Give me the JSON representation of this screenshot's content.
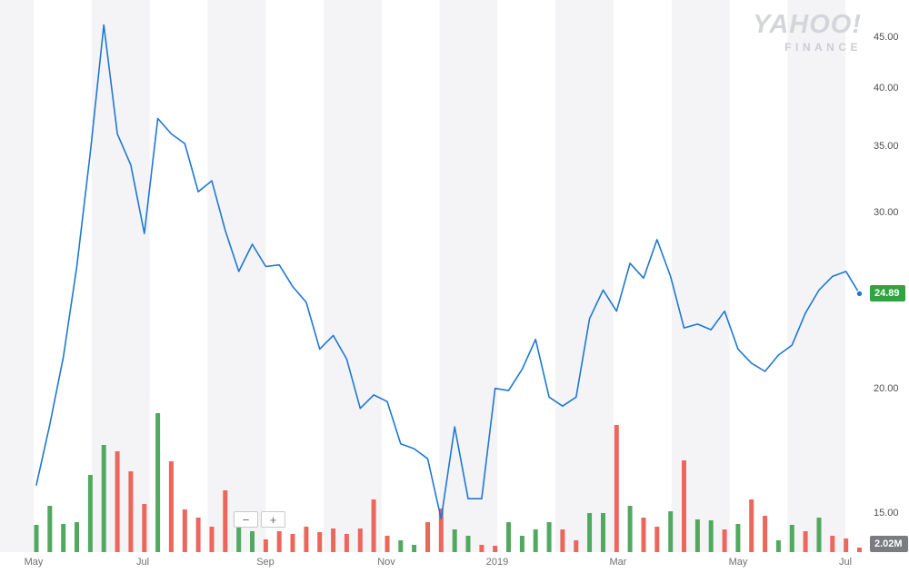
{
  "branding": {
    "logo_main": "YAHOO!",
    "logo_sub": "FINANCE"
  },
  "toolbar": {
    "zoom_out_label": "−",
    "zoom_in_label": "+"
  },
  "price_badge": {
    "text": "24.89"
  },
  "volume_badge": {
    "text": "2.02M"
  },
  "chart_data": {
    "type": "line",
    "y_scale": "log",
    "ylim": [
      14,
      47
    ],
    "grid": "alternating vertical month bands",
    "legend": "none",
    "x_ticks": [
      "May",
      "Jul",
      "Sep",
      "Nov",
      "2019",
      "Mar",
      "May",
      "Jul"
    ],
    "y_ticks": [
      "45.00",
      "40.00",
      "35.00",
      "30.00",
      "20.00",
      "15.00"
    ],
    "last_price": 24.89,
    "last_volume_label": "2.02M",
    "prices": [
      16,
      18.4,
      21.5,
      26.5,
      34.5,
      46.3,
      36,
      33.5,
      28.6,
      37.3,
      36,
      35.2,
      31.5,
      32.3,
      28.8,
      26.2,
      27.9,
      26.5,
      26.6,
      25.3,
      24.4,
      21.9,
      22.6,
      21.4,
      19.1,
      19.7,
      19.4,
      17.6,
      17.4,
      17,
      14.8,
      18.3,
      15.5,
      15.5,
      20,
      19.9,
      20.9,
      22.4,
      19.6,
      19.2,
      19.6,
      23.5,
      25.1,
      23.9,
      26.7,
      25.8,
      28.2,
      25.9,
      23,
      23.2,
      22.9,
      23.9,
      21.9,
      21.2,
      20.8,
      21.6,
      22.1,
      23.8,
      25.1,
      25.9,
      26.2,
      24.89
    ],
    "volumes_millions": [
      12,
      20.4,
      12.4,
      13.2,
      34,
      47.2,
      44.4,
      35.6,
      21.2,
      61.2,
      40,
      18.8,
      15.2,
      11.2,
      27.2,
      11.2,
      9.2,
      5.6,
      9.2,
      8,
      11.2,
      8.8,
      10.4,
      8,
      10.4,
      23.2,
      7.2,
      5.2,
      3.2,
      13.2,
      19.2,
      10,
      7.2,
      3.2,
      2.8,
      13.2,
      7.2,
      10,
      13.2,
      10,
      5.2,
      17.2,
      17.2,
      56,
      20.4,
      15.2,
      11.2,
      18,
      40.4,
      14.4,
      14,
      10,
      12.4,
      23.2,
      16,
      5.2,
      12,
      9.2,
      15.2,
      7.2,
      6,
      2.02
    ],
    "volume_direction": [
      "u",
      "u",
      "u",
      "u",
      "u",
      "u",
      "d",
      "d",
      "d",
      "u",
      "d",
      "d",
      "d",
      "d",
      "d",
      "u",
      "u",
      "d",
      "d",
      "d",
      "d",
      "d",
      "d",
      "d",
      "d",
      "d",
      "d",
      "u",
      "u",
      "d",
      "d",
      "u",
      "u",
      "d",
      "d",
      "u",
      "u",
      "u",
      "u",
      "d",
      "d",
      "u",
      "u",
      "d",
      "u",
      "d",
      "d",
      "u",
      "d",
      "u",
      "u",
      "d",
      "u",
      "d",
      "d",
      "u",
      "u",
      "d",
      "u",
      "d",
      "d",
      "d"
    ],
    "colors": {
      "line": "#1e78d2",
      "volume_up": "#51a95f",
      "volume_down": "#ec665c",
      "price_badge_bg": "#31a342",
      "volume_badge_bg": "#7b7c80",
      "band": "#f4f4f6"
    }
  }
}
